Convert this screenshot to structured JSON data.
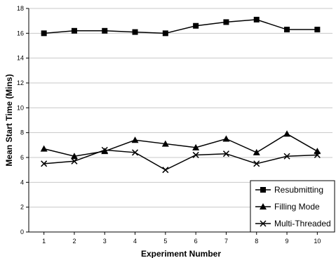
{
  "chart_data": {
    "type": "line",
    "title": "",
    "xlabel": "Experiment Number",
    "ylabel": "Mean Start Time (Mins)",
    "x": [
      1,
      2,
      3,
      4,
      5,
      6,
      7,
      8,
      9,
      10
    ],
    "xlim": [
      0.5,
      10.5
    ],
    "ylim": [
      0,
      18
    ],
    "yticks": [
      0,
      2,
      4,
      6,
      8,
      10,
      12,
      14,
      16,
      18
    ],
    "grid": "horizontal",
    "legend_position": "bottom-right",
    "series": [
      {
        "name": "Resubmitting",
        "marker": "square",
        "color": "#000000",
        "values": [
          16.0,
          16.2,
          16.2,
          16.1,
          16.0,
          16.6,
          16.9,
          17.1,
          16.3,
          16.3
        ]
      },
      {
        "name": "Filling Mode",
        "marker": "triangle",
        "color": "#000000",
        "values": [
          6.7,
          6.1,
          6.5,
          7.4,
          7.1,
          6.8,
          7.5,
          6.4,
          7.9,
          6.5
        ]
      },
      {
        "name": "Multi-Threaded",
        "marker": "x",
        "color": "#000000",
        "values": [
          5.5,
          5.7,
          6.6,
          6.4,
          5.0,
          6.2,
          6.3,
          5.5,
          6.1,
          6.2
        ]
      }
    ]
  }
}
